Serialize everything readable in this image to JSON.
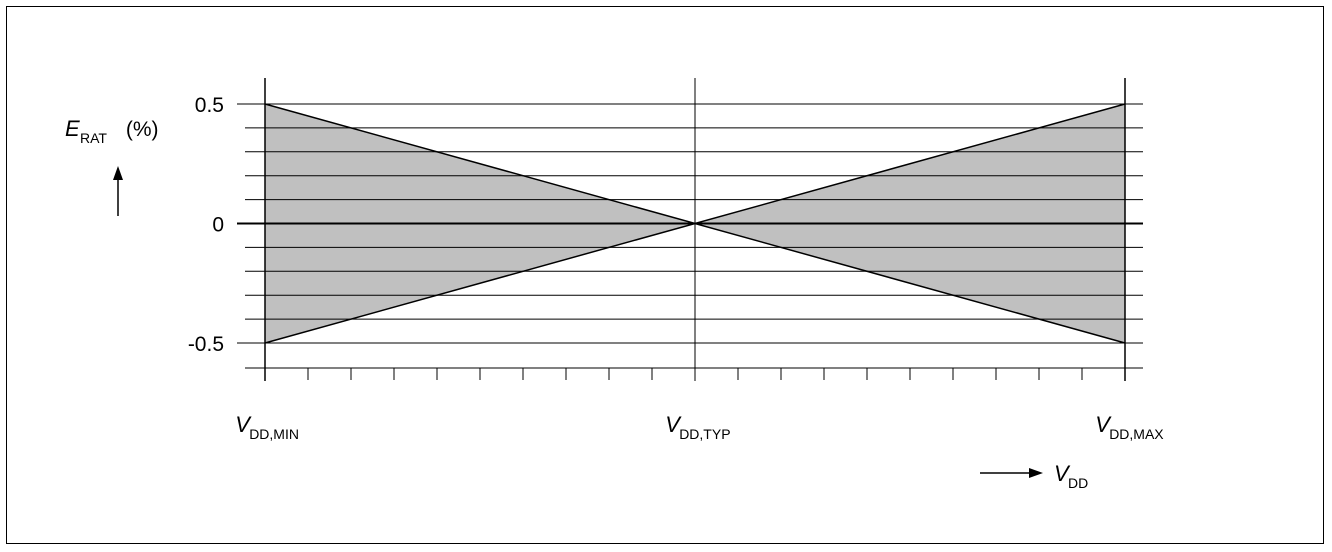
{
  "chart_data": {
    "type": "area",
    "title": "",
    "ylabel": {
      "main": "E",
      "sub": "RAT",
      "suffix": " (%)"
    },
    "xlabel": {
      "main": "V",
      "sub": "DD"
    },
    "ylim": [
      -0.5,
      0.5
    ],
    "yticks": [
      {
        "value": 0.5,
        "label": "0.5"
      },
      {
        "value": 0,
        "label": "0"
      },
      {
        "value": -0.5,
        "label": "-0.5"
      }
    ],
    "xticks": [
      {
        "value": 0,
        "main": "V",
        "sub": "DD,MIN"
      },
      {
        "value": 1,
        "main": "V",
        "sub": "DD,TYP"
      },
      {
        "value": 2,
        "main": "V",
        "sub": "DD,MAX"
      }
    ],
    "series": [
      {
        "x": [
          0,
          1,
          2
        ],
        "y": [
          0.5,
          0,
          0.5
        ]
      },
      {
        "x": [
          0,
          1,
          2
        ],
        "y": [
          -0.5,
          0,
          -0.5
        ]
      }
    ],
    "grid": true,
    "fill_color": "#c0c0c0",
    "line_color": "#000000"
  }
}
